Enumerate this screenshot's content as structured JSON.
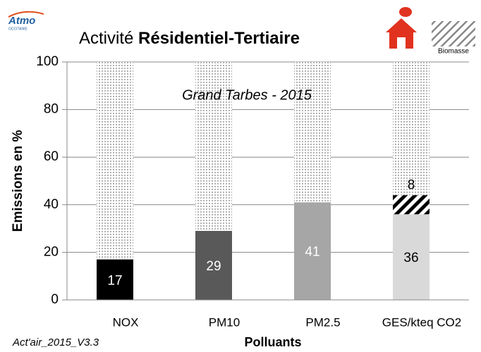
{
  "chart_data": {
    "type": "bar",
    "logo": {
      "name": "Atmo",
      "region": "OCCITANIE"
    },
    "title": {
      "regular": "Activité",
      "bold": "Résidentiel-Tertiaire"
    },
    "subtitle": "Grand Tarbes - 2015",
    "footer": "Act'air_2015_V3.3",
    "xlabel": "Polluants",
    "ylabel": "Emissions en %",
    "categories": [
      "NOX",
      "PM10",
      "PM2.5",
      "GES/kteq CO2"
    ],
    "series": [
      {
        "colors": [
          "#000000",
          "#595959",
          "#a6a6a6",
          "#d9d9d9"
        ],
        "label_colors": [
          "#ffffff",
          "#ffffff",
          "#ffffff",
          "#000000"
        ],
        "values": [
          17,
          29,
          41,
          36
        ]
      },
      {
        "name": "Biomasse",
        "pattern": "hatch",
        "values": [
          null,
          null,
          null,
          8
        ]
      }
    ],
    "ylim": [
      0,
      100
    ],
    "yticks": [
      0,
      20,
      40,
      60,
      80,
      100
    ],
    "grid": true
  }
}
